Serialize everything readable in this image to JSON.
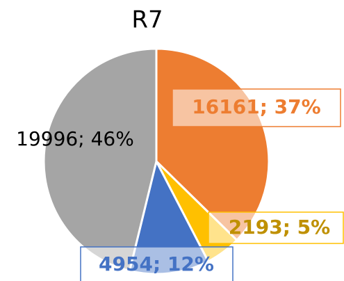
{
  "chart_data": {
    "type": "pie",
    "title": "R7",
    "categories": [
      null,
      null,
      null,
      null
    ],
    "values": [
      16161,
      2193,
      4954,
      19996
    ],
    "value_labels": [
      "16161; 37%",
      "2193; 5%",
      "4954; 12%",
      "19996; 46%"
    ],
    "colors": [
      "#ED7D31",
      "#FFC000",
      "#4472C4",
      "#A5A5A5"
    ]
  }
}
